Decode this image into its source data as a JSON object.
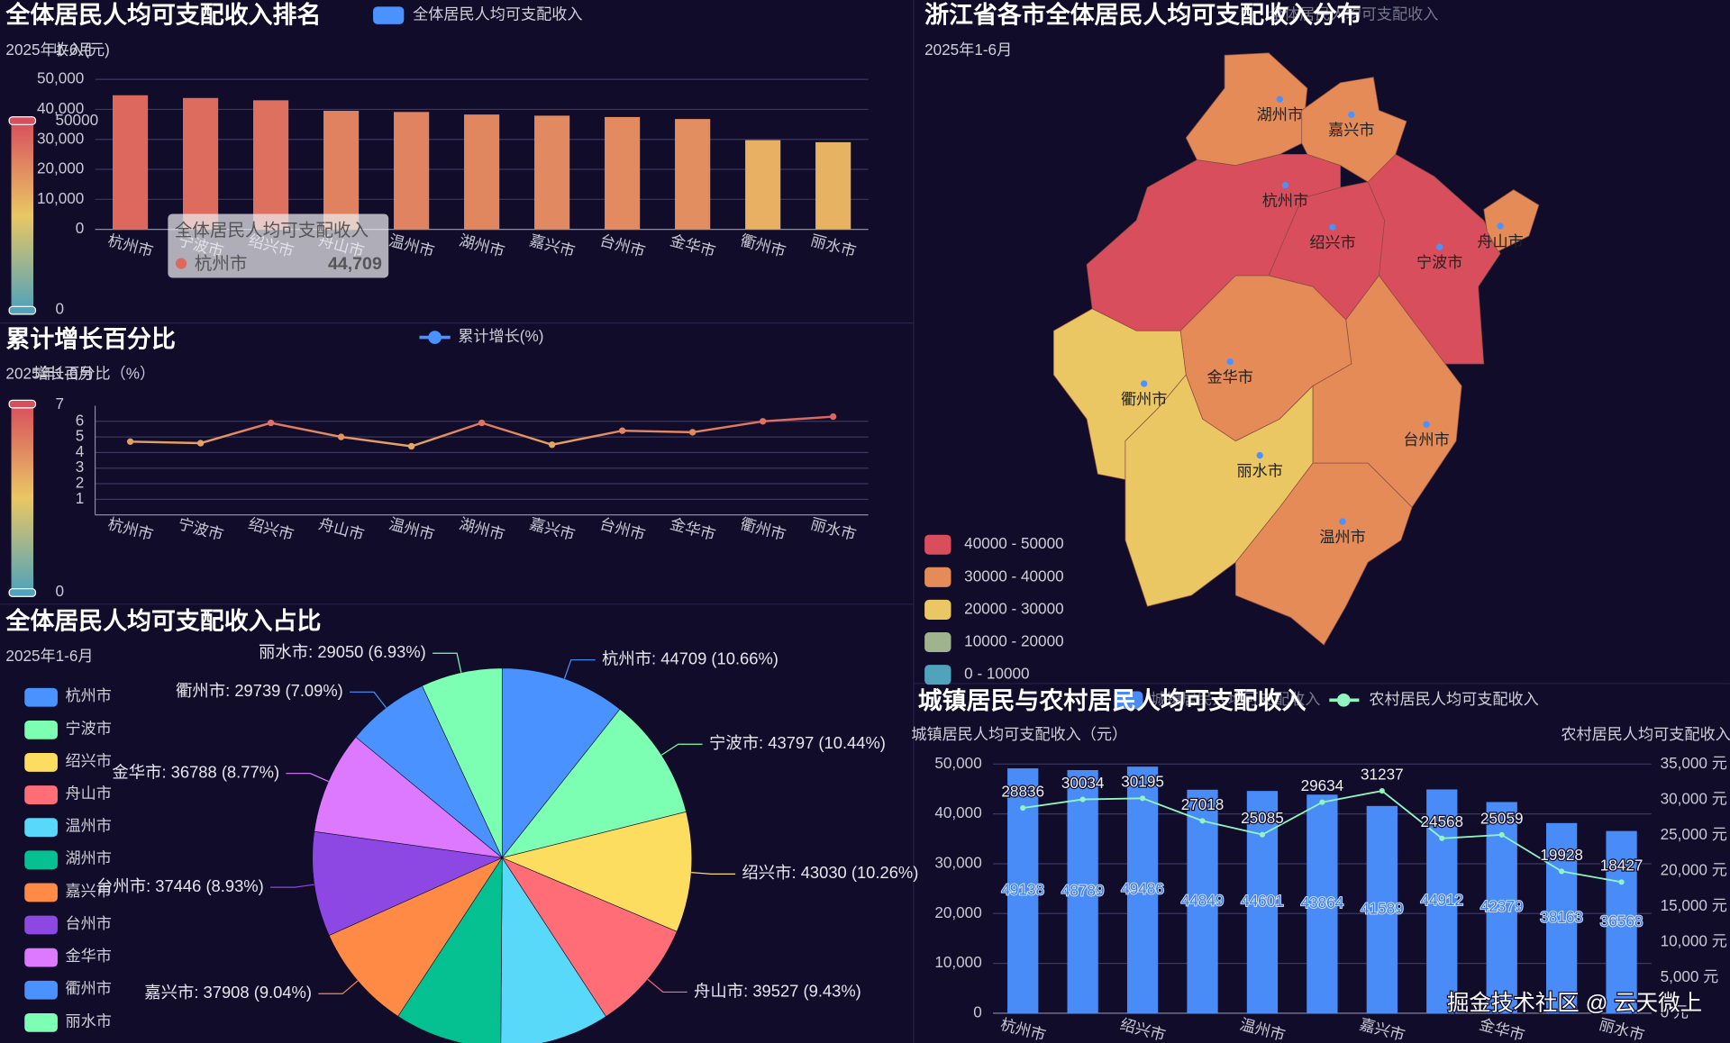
{
  "chart_data": [
    {
      "type": "bar",
      "title": "全体居民人均可支配收入排名",
      "subtitle": "2025年1-6月",
      "y_label": "收入(元)",
      "categories": [
        "杭州市",
        "宁波市",
        "绍兴市",
        "舟山市",
        "温州市",
        "湖州市",
        "嘉兴市",
        "台州市",
        "金华市",
        "衢州市",
        "丽水市"
      ],
      "series": [
        {
          "name": "全体居民人均可支配收入",
          "color": "#4992ff",
          "values": [
            44709,
            43797,
            43030,
            39527,
            39136,
            38284,
            37908,
            37446,
            36788,
            29739,
            29050
          ],
          "value_labels": [
            "44,709",
            null,
            null,
            null,
            null,
            null,
            null,
            null,
            null,
            null,
            null
          ]
        }
      ],
      "ylim": [
        0,
        50000
      ],
      "yticks": [
        0,
        {
          "value": 10000,
          "label": "10,000"
        },
        {
          "value": 20000,
          "label": "20,000"
        },
        {
          "value": 30000,
          "label": "30,000"
        },
        {
          "value": 40000,
          "label": "40,000"
        },
        {
          "value": 50000,
          "label": "50,000"
        }
      ],
      "grid": true,
      "visual_map": {
        "min": 0,
        "max": 50000,
        "colors": [
          "#50a3ba",
          "#eac763",
          "#d94e5d"
        ]
      }
    },
    {
      "type": "line",
      "title": "累计增长百分比",
      "subtitle": "2025年1-6月",
      "y_label": "增长百分比（%）",
      "categories": [
        "杭州市",
        "宁波市",
        "绍兴市",
        "舟山市",
        "温州市",
        "湖州市",
        "嘉兴市",
        "台州市",
        "金华市",
        "衢州市",
        "丽水市"
      ],
      "series": [
        {
          "name": "累计增长(%)",
          "color": "#4992ff",
          "values": [
            4.7,
            4.6,
            5.9,
            5.0,
            4.4,
            5.9,
            4.5,
            5.4,
            5.3,
            6.0,
            6.3
          ]
        }
      ],
      "ylim": [
        0,
        7
      ],
      "yticks": [
        1,
        2,
        3,
        4,
        5,
        6
      ],
      "grid": true,
      "visual_map": {
        "min": 0,
        "max": 7,
        "colors": [
          "#50a3ba",
          "#eac763",
          "#d94e5d"
        ]
      }
    },
    {
      "type": "pie",
      "title": "全体居民人均可支配收入占比",
      "subtitle": "2025年1-6月",
      "categories": [
        "杭州市",
        "宁波市",
        "绍兴市",
        "舟山市",
        "温州市",
        "湖州市",
        "嘉兴市",
        "台州市",
        "金华市",
        "衢州市",
        "丽水市"
      ],
      "values": [
        44709,
        43797,
        43030,
        39527,
        39136,
        38284,
        37908,
        37446,
        36788,
        29739,
        29050
      ],
      "value_labels": [
        "杭州市: 44709 (10.66%)",
        "宁波市: 43797 (10.44%)",
        "绍兴市: 43030 (10.26%)",
        "舟山市: 39527 (9.43%)",
        null,
        null,
        "嘉兴市: 37908 (9.04%)",
        "台州市: 37446 (8.93%)",
        "金华市: 36788 (8.77%)",
        "衢州市: 29739 (7.09%)",
        "丽水市: 29050 (6.93%)"
      ],
      "colors": [
        "#4992ff",
        "#7cffb2",
        "#fddd60",
        "#ff6e76",
        "#58d9f9",
        "#05c091",
        "#ff8a45",
        "#8d48e3",
        "#dd79ff",
        "#4992ff",
        "#7cffb2"
      ]
    },
    {
      "type": "map",
      "title": "浙江省各市全体居民人均可支配收入分布",
      "subtitle": "2025年1-6月",
      "categories": [
        "杭州市",
        "宁波市",
        "绍兴市",
        "舟山市",
        "温州市",
        "湖州市",
        "嘉兴市",
        "台州市",
        "金华市",
        "衢州市",
        "丽水市"
      ],
      "series": [
        {
          "name": "全体居民人均可支配收入",
          "values": [
            44709,
            43797,
            43030,
            39527,
            39136,
            38284,
            37908,
            37446,
            36788,
            29739,
            29050
          ]
        }
      ],
      "pieces": [
        {
          "min": 40000,
          "max": 50000,
          "label": "40000 - 50000",
          "color": "#d94e5d"
        },
        {
          "min": 30000,
          "max": 40000,
          "label": "30000 - 40000",
          "color": "#e58b58"
        },
        {
          "min": 20000,
          "max": 30000,
          "label": "20000 - 30000",
          "color": "#eac763"
        },
        {
          "min": 10000,
          "max": 20000,
          "label": "10000 - 20000",
          "color": "#9fb38e"
        },
        {
          "min": 0,
          "max": 10000,
          "label": "0 - 10000",
          "color": "#50a3ba"
        }
      ]
    },
    {
      "type": "bar_line",
      "title": "城镇居民与农村居民人均可支配收入",
      "y_label": "城镇居民人均可支配收入（元）",
      "y2_label": "农村居民人均可支配收入（元）",
      "categories": [
        "杭州市",
        null,
        "绍兴市",
        null,
        "温州市",
        null,
        "嘉兴市",
        null,
        "金华市",
        null,
        "丽水市"
      ],
      "series": [
        {
          "name": "城镇居民人均可支配收入",
          "type": "bar",
          "color": "#4a8cf7",
          "values": [
            49138,
            48789,
            49486,
            44849,
            44601,
            43864,
            41589,
            44912,
            42379,
            38163,
            36568
          ]
        },
        {
          "name": "农村居民人均可支配收入",
          "type": "line",
          "axis": "y2",
          "color": "#91f5c0",
          "values": [
            28836,
            30034,
            30195,
            27018,
            25085,
            29634,
            31237,
            24568,
            25059,
            19928,
            18427
          ]
        }
      ],
      "ylim": [
        0,
        50000
      ],
      "yticks": [
        0,
        {
          "value": 10000,
          "label": "10,000"
        },
        {
          "value": 20000,
          "label": "20,000"
        },
        {
          "value": 30000,
          "label": "30,000"
        },
        {
          "value": 40000,
          "label": "40,000"
        },
        {
          "value": 50000,
          "label": "50,000"
        }
      ],
      "y2lim": [
        0,
        35000
      ],
      "y2ticks": [
        {
          "value": 0,
          "label": "0 元"
        },
        {
          "value": 5000,
          "label": "5,000 元"
        },
        {
          "value": 10000,
          "label": "10,000 元"
        },
        {
          "value": 15000,
          "label": "15,000 元"
        },
        {
          "value": 20000,
          "label": "20,000 元"
        },
        {
          "value": 25000,
          "label": "25,000 元"
        },
        {
          "value": 30000,
          "label": "30,000 元"
        },
        {
          "value": 35000,
          "label": "35,000 元"
        }
      ],
      "grid": true
    }
  ],
  "watermark": "掘金技术社区 @ 云天微上"
}
